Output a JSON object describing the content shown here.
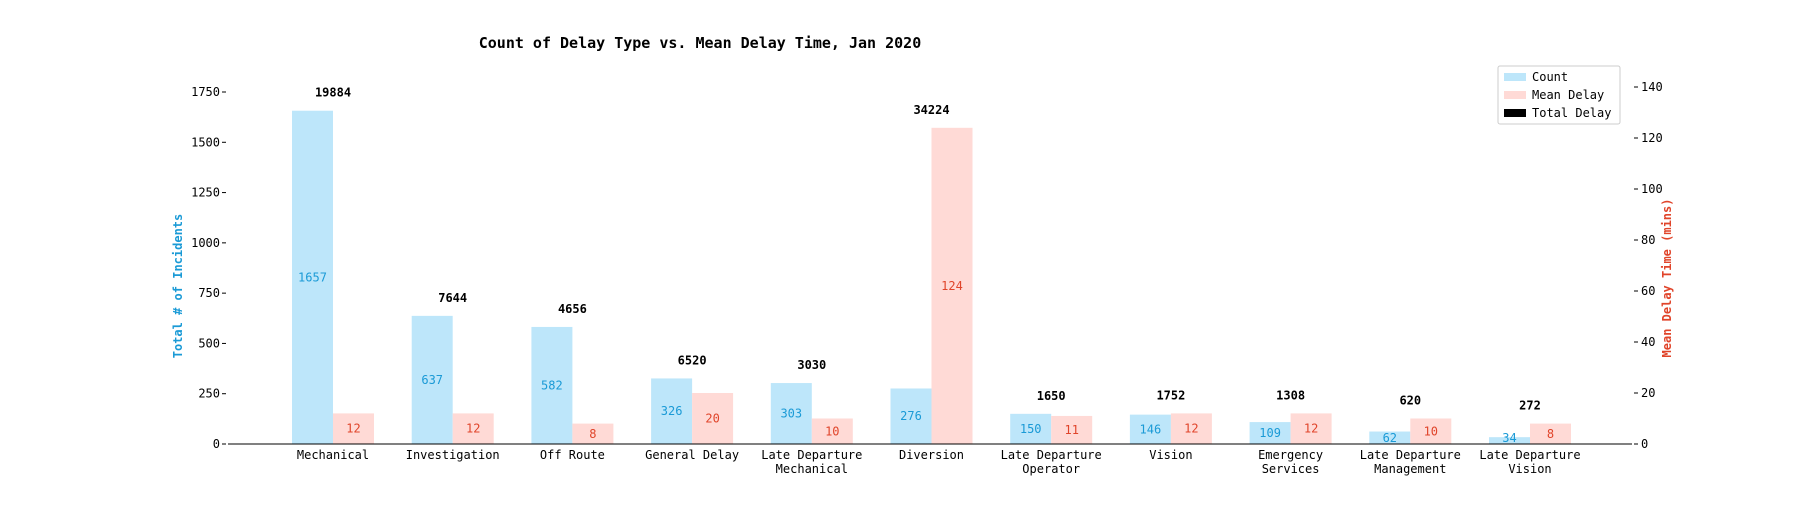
{
  "chart_data": {
    "type": "bar",
    "title": "Count of Delay Type vs. Mean Delay Time, Jan 2020",
    "ylabel_left": "Total # of Incidents",
    "ylabel_right": "Mean Delay Time (mins)",
    "ylim_left": [
      0,
      1750
    ],
    "ylim_right": [
      0,
      140
    ],
    "yticks_left": [
      0,
      250,
      500,
      750,
      1000,
      1250,
      1500,
      1750
    ],
    "yticks_right": [
      0,
      20,
      40,
      60,
      80,
      100,
      120,
      140
    ],
    "categories": [
      [
        "Mechanical"
      ],
      [
        "Investigation"
      ],
      [
        "Off Route"
      ],
      [
        "General Delay"
      ],
      [
        "Late Departure",
        "Mechanical"
      ],
      [
        "Diversion"
      ],
      [
        "Late Departure",
        "Operator"
      ],
      [
        "Vision"
      ],
      [
        "Emergency",
        "Services"
      ],
      [
        "Late Departure",
        "Management"
      ],
      [
        "Late Departure",
        "Vision"
      ]
    ],
    "series": [
      {
        "name": "Count",
        "axis": "left",
        "color": "#bde6fa",
        "label_color": "#1a9ad6",
        "values": [
          1657,
          637,
          582,
          326,
          303,
          276,
          150,
          146,
          109,
          62,
          34
        ]
      },
      {
        "name": "Mean Delay",
        "axis": "right",
        "color": "#ffdad6",
        "label_color": "#e0442a",
        "values": [
          12,
          12,
          8,
          20,
          10,
          124,
          11,
          12,
          12,
          10,
          8
        ]
      }
    ],
    "total_delay": {
      "name": "Total Delay",
      "color": "#000000",
      "values": [
        19884,
        7644,
        4656,
        6520,
        3030,
        34224,
        1650,
        1752,
        1308,
        620,
        272
      ]
    },
    "legend_position": "top-right",
    "grid": false,
    "axis_colors": {
      "left": "#1a9ad6",
      "right": "#e0442a"
    }
  }
}
